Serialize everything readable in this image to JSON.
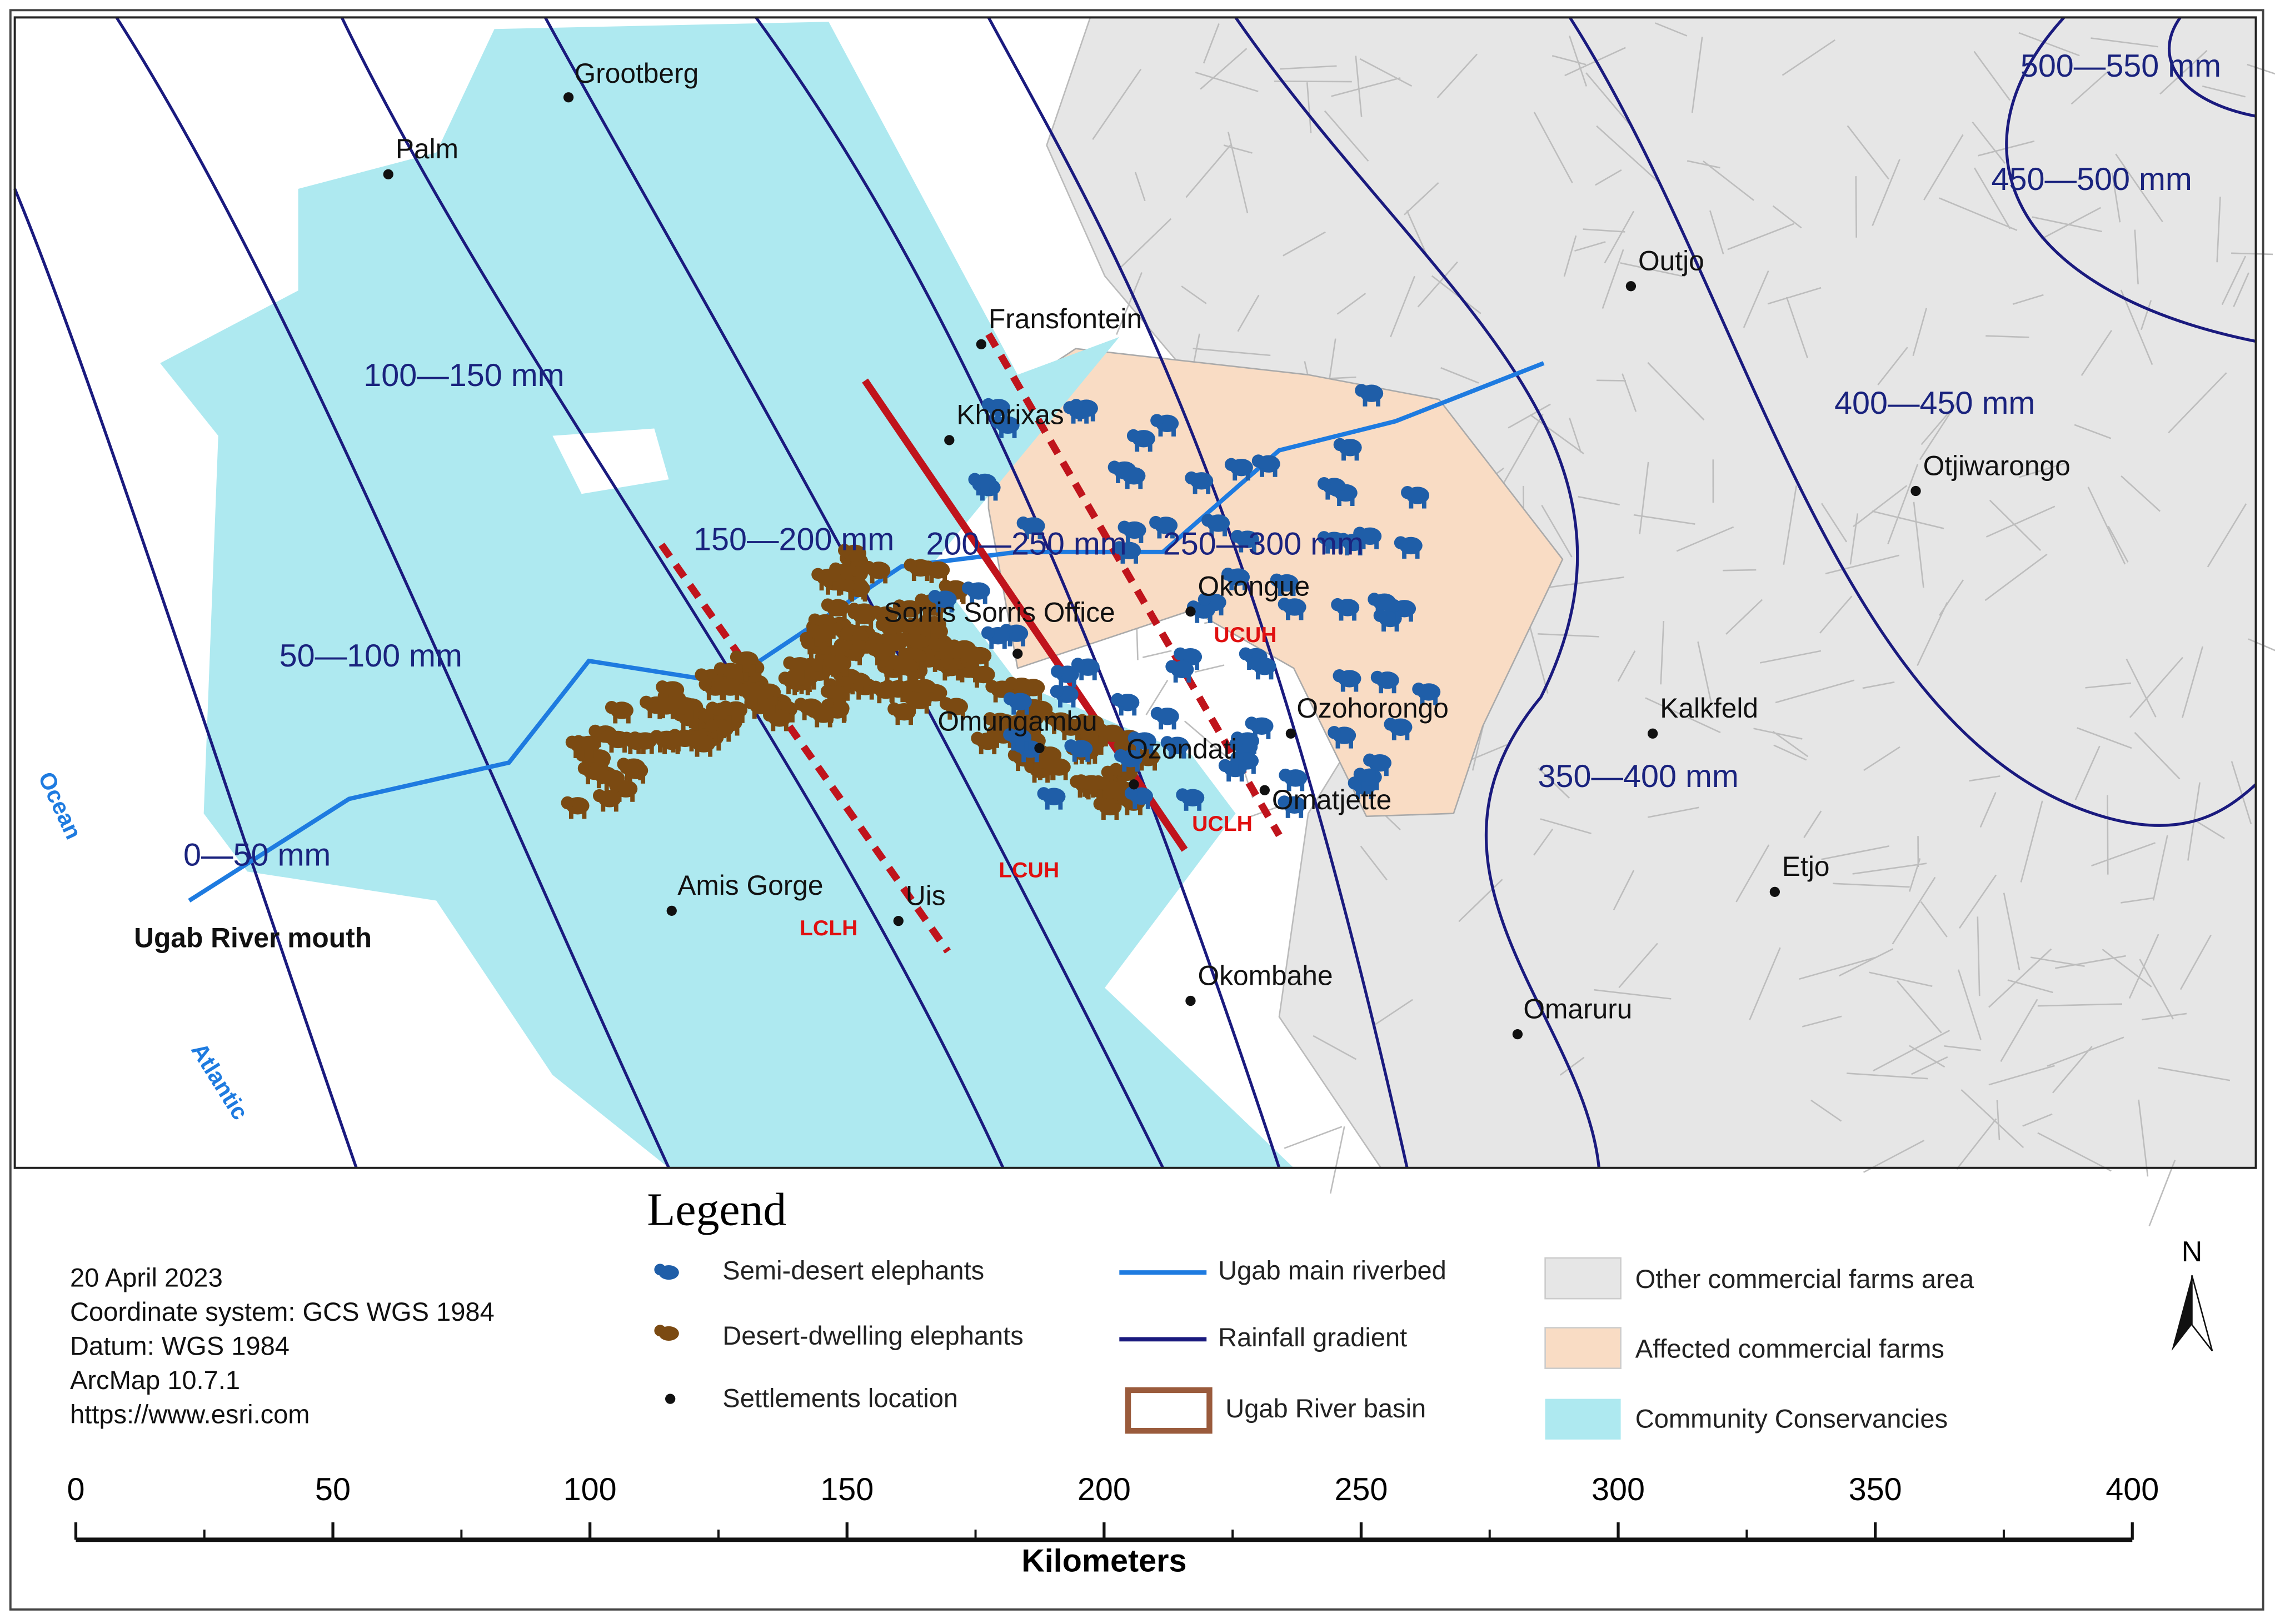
{
  "map": {
    "places": [
      "Grootberg",
      "Palm",
      "Fransfontein",
      "Khorixas",
      "Okongue",
      "Sorris Sorris Office",
      "Omungambu",
      "Ozondati",
      "Ozohorongo",
      "Omatjette",
      "Amis Gorge",
      "Uis",
      "Okombahe",
      "Outjo",
      "Otjiwarongo",
      "Kalkfeld",
      "Etjo",
      "Omaruru"
    ],
    "rainfall_labels": [
      "500—550 mm",
      "450—500 mm",
      "400—450 mm",
      "350—400 mm",
      "100—150 mm",
      "150—200 mm",
      "200—250 mm",
      "250—300 mm",
      "50—100 mm",
      "0—50 mm"
    ],
    "zones": [
      "UCUH",
      "UCLH",
      "LCUH",
      "LCLH"
    ],
    "water": [
      "Ocean",
      "Atlantic"
    ],
    "river_mouth": "Ugab River mouth"
  },
  "legend": {
    "title": "Legend",
    "items": [
      "Semi-desert elephants",
      "Desert-dwelling elephants",
      "Settlements location",
      "Ugab main riverbed",
      "Rainfall gradient",
      "Ugab River basin",
      "Other commercial farms area",
      "Affected commercial farms",
      "Community Conservancies"
    ]
  },
  "metadata": [
    "20 April 2023",
    "Coordinate system: GCS WGS 1984",
    "Datum: WGS 1984",
    "ArcMap 10.7.1",
    "https://www.esri.com"
  ],
  "north": "N",
  "scale": {
    "ticks": [
      0,
      50,
      100,
      150,
      200,
      250,
      300,
      350,
      400
    ],
    "unit": "Kilometers"
  }
}
